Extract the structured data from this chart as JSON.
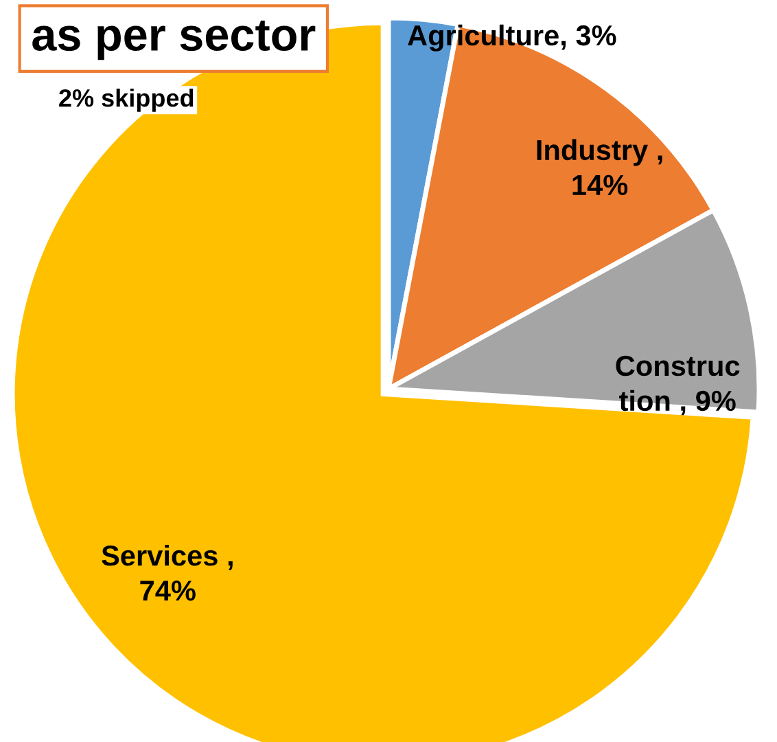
{
  "chart_data": {
    "type": "pie",
    "title": "as per sector",
    "categories": [
      "Agriculture, 3%",
      "Industry ,\n14%",
      "Construc\ntion , 9%",
      "Services ,\n74%"
    ],
    "values": [
      3,
      14,
      9,
      74
    ],
    "colors": [
      "#5b9bd5",
      "#ed7d31",
      "#a5a5a5",
      "#ffc000"
    ],
    "annotations": [
      "2% skipped"
    ]
  }
}
